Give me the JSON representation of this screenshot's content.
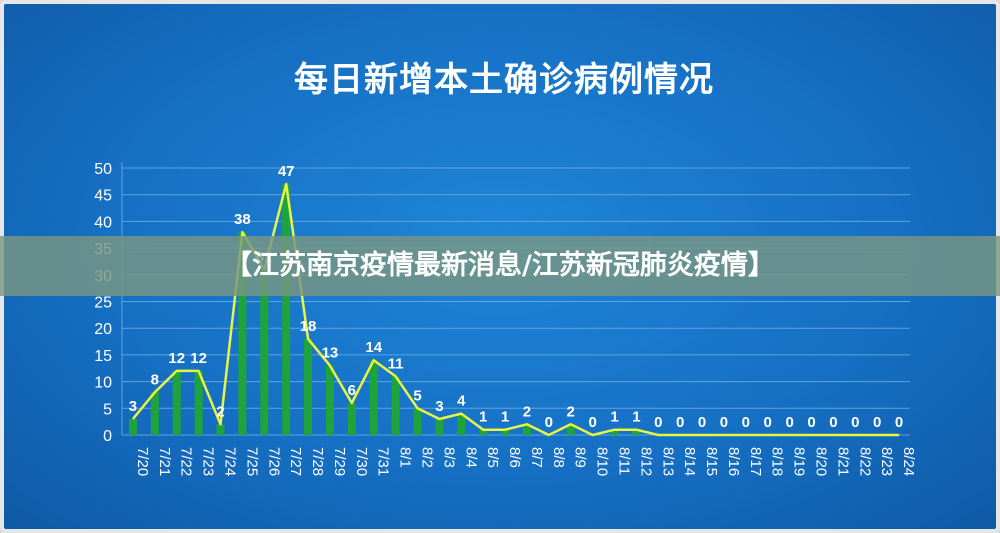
{
  "overlay": {
    "banner_text": "【江苏南京疫情最新消息/江苏新冠肺炎疫情】"
  },
  "colors": {
    "bar": "#1fa33c",
    "line": "#e8f542",
    "grid": "#5ea3e0",
    "text": "#ffffff"
  },
  "chart_data": {
    "type": "bar",
    "title": "每日新增本土确诊病例情况",
    "xlabel": "",
    "ylabel": "",
    "ylim": [
      0,
      50
    ],
    "yticks": [
      0,
      5,
      10,
      15,
      20,
      25,
      30,
      35,
      40,
      45,
      50
    ],
    "grid": true,
    "legend": "none",
    "categories": [
      "7/20",
      "7/21",
      "7/22",
      "7/23",
      "7/24",
      "7/25",
      "7/26",
      "7/27",
      "7/28",
      "7/29",
      "7/30",
      "7/31",
      "8/1",
      "8/2",
      "8/3",
      "8/4",
      "8/5",
      "8/6",
      "8/7",
      "8/8",
      "8/9",
      "8/10",
      "8/11",
      "8/12",
      "8/13",
      "8/14",
      "8/15",
      "8/16",
      "8/17",
      "8/18",
      "8/19",
      "8/20",
      "8/21",
      "8/22",
      "8/23",
      "8/24"
    ],
    "values": [
      3,
      8,
      12,
      12,
      2,
      38,
      31,
      47,
      18,
      13,
      6,
      14,
      11,
      5,
      3,
      4,
      1,
      1,
      2,
      0,
      2,
      0,
      1,
      1,
      0,
      0,
      0,
      0,
      0,
      0,
      0,
      0,
      0,
      0,
      0,
      0
    ],
    "overlay_line": true
  }
}
